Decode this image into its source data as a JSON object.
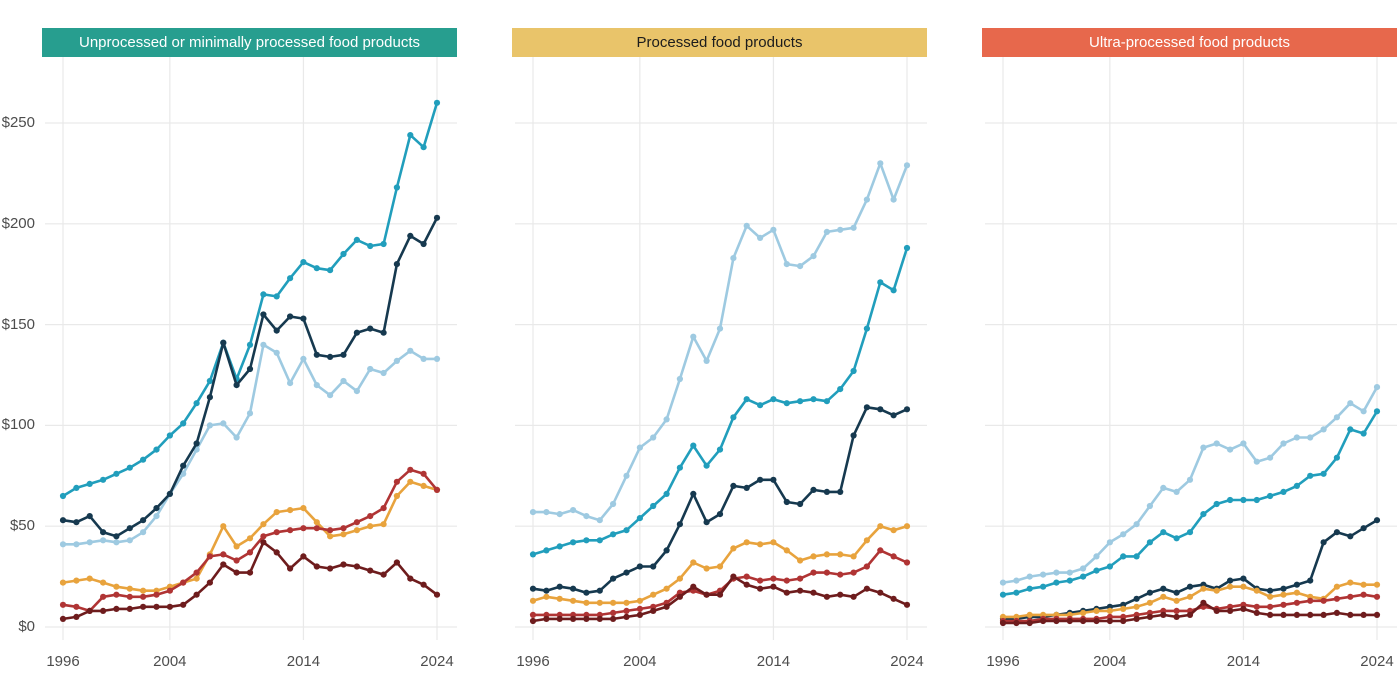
{
  "page": {
    "background": "#ffffff"
  },
  "axis": {
    "years": [
      1996,
      1997,
      1998,
      1999,
      2000,
      2001,
      2002,
      2003,
      2004,
      2005,
      2006,
      2007,
      2008,
      2009,
      2010,
      2011,
      2012,
      2013,
      2014,
      2015,
      2016,
      2017,
      2018,
      2019,
      2020,
      2021,
      2022,
      2023,
      2024
    ],
    "x_tick_years": [
      1996,
      2004,
      2014,
      2024
    ],
    "x_tick_labels": [
      "1996",
      "2004",
      "2014",
      "2024"
    ],
    "y_tick_values": [
      0,
      50,
      100,
      150,
      200,
      250
    ],
    "y_tick_labels": [
      "$0",
      "$50",
      "$100",
      "$150",
      "$200",
      "$250"
    ],
    "text_color": "#4d4d4d",
    "gridline_color": "#e9e9e9"
  },
  "chart_data": [
    {
      "type": "line",
      "title": "Unprocessed or minimally processed food products",
      "header_bg": "#279e8f",
      "header_text_color": "#ffffff",
      "xlabel": "",
      "ylabel": "",
      "ylim": [
        0,
        270
      ],
      "grid": true,
      "legend": "none",
      "series": [
        {
          "name": "light-blue-series",
          "color": "#9ecae1",
          "values": [
            41,
            41,
            42,
            43,
            42,
            43,
            47,
            55,
            66,
            76,
            88,
            100,
            101,
            94,
            106,
            140,
            136,
            121,
            133,
            120,
            115,
            122,
            117,
            128,
            126,
            132,
            137,
            133,
            133
          ]
        },
        {
          "name": "teal-blue-series",
          "color": "#219ebc",
          "values": [
            65,
            69,
            71,
            73,
            76,
            79,
            83,
            88,
            95,
            101,
            111,
            122,
            141,
            123,
            140,
            165,
            164,
            173,
            181,
            178,
            177,
            185,
            192,
            189,
            190,
            218,
            244,
            238,
            260
          ]
        },
        {
          "name": "navy-series",
          "color": "#16394f",
          "values": [
            53,
            52,
            55,
            47,
            45,
            49,
            53,
            59,
            66,
            80,
            91,
            114,
            141,
            120,
            128,
            155,
            147,
            154,
            153,
            135,
            134,
            135,
            146,
            148,
            146,
            180,
            194,
            190,
            203
          ]
        },
        {
          "name": "orange-series",
          "color": "#e8a33d",
          "values": [
            22,
            23,
            24,
            22,
            20,
            19,
            18,
            18,
            20,
            22,
            24,
            36,
            50,
            40,
            44,
            51,
            57,
            58,
            59,
            52,
            45,
            46,
            48,
            50,
            51,
            65,
            72,
            70,
            68
          ]
        },
        {
          "name": "red-series",
          "color": "#b03434",
          "values": [
            11,
            10,
            8,
            15,
            16,
            15,
            15,
            16,
            18,
            22,
            27,
            35,
            36,
            33,
            37,
            45,
            47,
            48,
            49,
            49,
            48,
            49,
            52,
            55,
            59,
            72,
            78,
            76,
            68
          ]
        },
        {
          "name": "dark-red-series",
          "color": "#6e1c1d",
          "values": [
            4,
            5,
            8,
            8,
            9,
            9,
            10,
            10,
            10,
            11,
            16,
            22,
            31,
            27,
            27,
            42,
            37,
            29,
            35,
            30,
            29,
            31,
            30,
            28,
            26,
            32,
            24,
            21,
            16
          ]
        }
      ]
    },
    {
      "type": "line",
      "title": "Processed food products",
      "header_bg": "#e9c46a",
      "header_text_color": "#1c1c1c",
      "xlabel": "",
      "ylabel": "",
      "ylim": [
        0,
        270
      ],
      "grid": true,
      "legend": "none",
      "series": [
        {
          "name": "light-blue-series",
          "color": "#9ecae1",
          "values": [
            57,
            57,
            56,
            58,
            55,
            53,
            61,
            75,
            89,
            94,
            103,
            123,
            144,
            132,
            148,
            183,
            199,
            193,
            197,
            180,
            179,
            184,
            196,
            197,
            198,
            212,
            230,
            212,
            229
          ]
        },
        {
          "name": "teal-blue-series",
          "color": "#219ebc",
          "values": [
            36,
            38,
            40,
            42,
            43,
            43,
            46,
            48,
            54,
            60,
            66,
            79,
            90,
            80,
            88,
            104,
            113,
            110,
            113,
            111,
            112,
            113,
            112,
            118,
            127,
            148,
            171,
            167,
            188
          ]
        },
        {
          "name": "navy-series",
          "color": "#16394f",
          "values": [
            19,
            18,
            20,
            19,
            17,
            18,
            24,
            27,
            30,
            30,
            38,
            51,
            66,
            52,
            56,
            70,
            69,
            73,
            73,
            62,
            61,
            68,
            67,
            67,
            95,
            109,
            108,
            105,
            108
          ]
        },
        {
          "name": "orange-series",
          "color": "#e8a33d",
          "values": [
            13,
            15,
            14,
            13,
            12,
            12,
            12,
            12,
            13,
            16,
            19,
            24,
            32,
            29,
            30,
            39,
            42,
            41,
            42,
            38,
            33,
            35,
            36,
            36,
            35,
            43,
            50,
            48,
            50
          ]
        },
        {
          "name": "red-series",
          "color": "#b03434",
          "values": [
            6,
            6,
            6,
            6,
            6,
            6,
            7,
            8,
            9,
            10,
            12,
            17,
            18,
            16,
            18,
            24,
            25,
            23,
            24,
            23,
            24,
            27,
            27,
            26,
            27,
            30,
            38,
            35,
            32
          ]
        },
        {
          "name": "dark-red-series",
          "color": "#6e1c1d",
          "values": [
            3,
            4,
            4,
            4,
            4,
            4,
            4,
            5,
            6,
            8,
            10,
            15,
            20,
            16,
            16,
            25,
            21,
            19,
            20,
            17,
            18,
            17,
            15,
            16,
            15,
            19,
            17,
            14,
            11
          ]
        }
      ]
    },
    {
      "type": "line",
      "title": "Ultra-processed food products",
      "header_bg": "#e7684c",
      "header_text_color": "#ffffff",
      "xlabel": "",
      "ylabel": "",
      "ylim": [
        0,
        270
      ],
      "grid": true,
      "legend": "none",
      "series": [
        {
          "name": "light-blue-series",
          "color": "#9ecae1",
          "values": [
            22,
            23,
            25,
            26,
            27,
            27,
            29,
            35,
            42,
            46,
            51,
            60,
            69,
            67,
            73,
            89,
            91,
            88,
            91,
            82,
            84,
            91,
            94,
            94,
            98,
            104,
            111,
            107,
            119
          ]
        },
        {
          "name": "teal-blue-series",
          "color": "#219ebc",
          "values": [
            16,
            17,
            19,
            20,
            22,
            23,
            25,
            28,
            30,
            35,
            35,
            42,
            47,
            44,
            47,
            56,
            61,
            63,
            63,
            63,
            65,
            67,
            70,
            75,
            76,
            84,
            98,
            96,
            107
          ]
        },
        {
          "name": "navy-series",
          "color": "#16394f",
          "values": [
            4,
            4,
            5,
            5,
            6,
            7,
            8,
            9,
            10,
            11,
            14,
            17,
            19,
            17,
            20,
            21,
            19,
            23,
            24,
            19,
            18,
            19,
            21,
            23,
            42,
            47,
            45,
            49,
            53
          ]
        },
        {
          "name": "orange-series",
          "color": "#e8a33d",
          "values": [
            5,
            5,
            6,
            6,
            6,
            6,
            7,
            8,
            8,
            9,
            10,
            12,
            15,
            13,
            15,
            19,
            18,
            20,
            20,
            18,
            15,
            16,
            17,
            15,
            14,
            20,
            22,
            21,
            21
          ]
        },
        {
          "name": "red-series",
          "color": "#b03434",
          "values": [
            3,
            3,
            3,
            4,
            4,
            4,
            4,
            4,
            5,
            5,
            6,
            7,
            8,
            8,
            8,
            10,
            9,
            10,
            11,
            10,
            10,
            11,
            12,
            13,
            13,
            14,
            15,
            16,
            15
          ]
        },
        {
          "name": "dark-red-series",
          "color": "#6e1c1d",
          "values": [
            2,
            2,
            2,
            3,
            3,
            3,
            3,
            3,
            3,
            3,
            4,
            5,
            6,
            5,
            6,
            12,
            8,
            8,
            9,
            7,
            6,
            6,
            6,
            6,
            6,
            7,
            6,
            6,
            6
          ]
        }
      ]
    }
  ]
}
